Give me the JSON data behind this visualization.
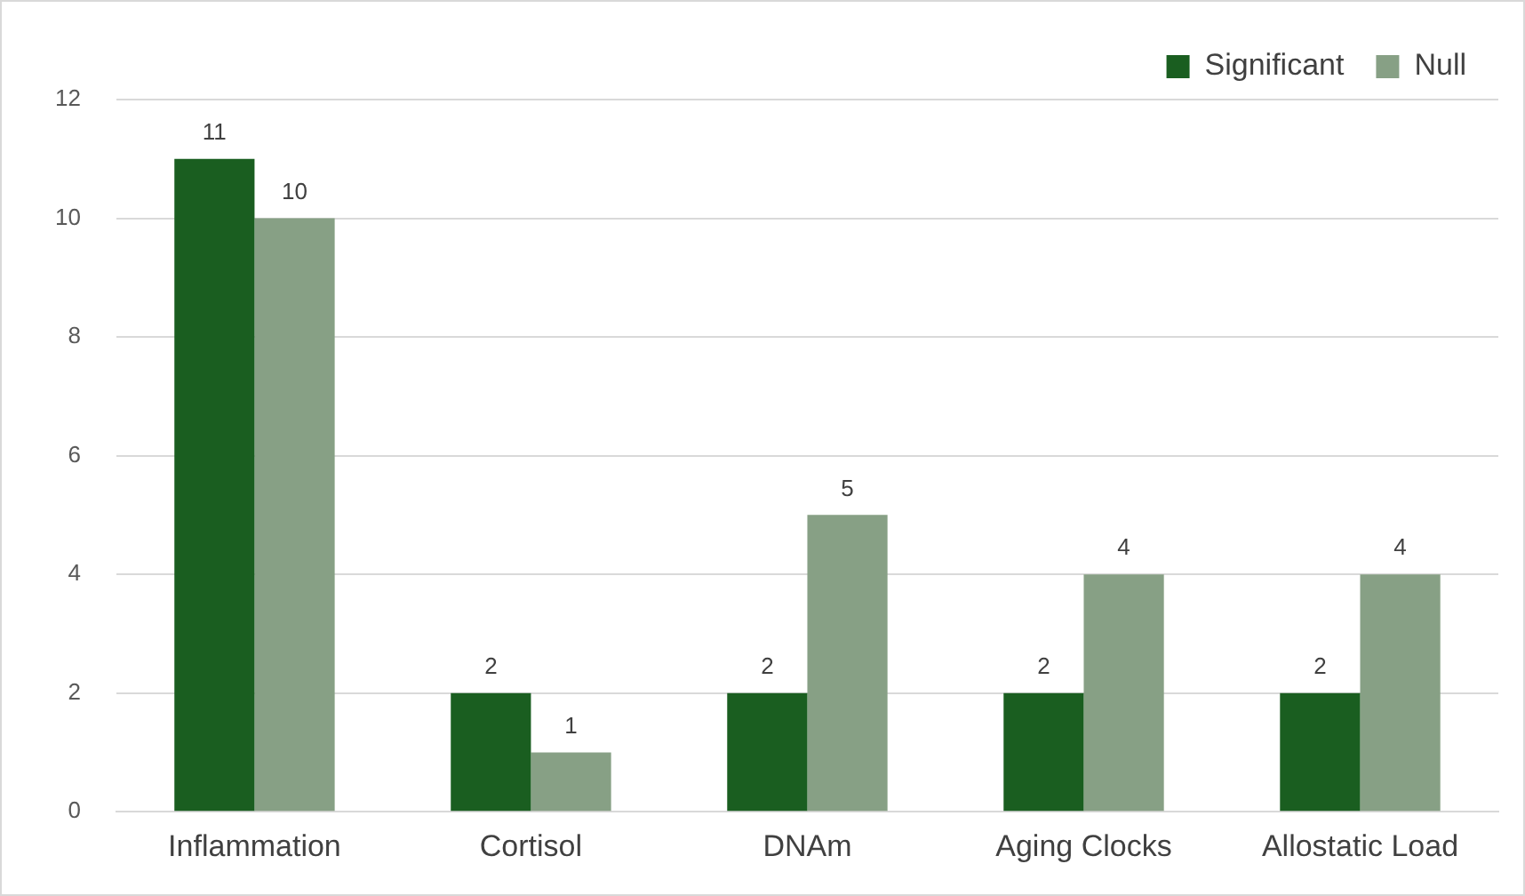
{
  "chart_data": {
    "type": "bar",
    "categories": [
      "Inflammation",
      "Cortisol",
      "DNAm",
      "Aging Clocks",
      "Allostatic Load"
    ],
    "series": [
      {
        "name": "Significant",
        "color": "#1a5e20",
        "values": [
          11,
          2,
          2,
          2,
          2
        ]
      },
      {
        "name": "Null",
        "color": "#87a085",
        "values": [
          10,
          1,
          5,
          4,
          4
        ]
      }
    ],
    "ylim": [
      0,
      12
    ],
    "yticks": [
      0,
      2,
      4,
      6,
      8,
      10,
      12
    ],
    "grid": "y",
    "legend": "top right",
    "data_labels": true
  }
}
